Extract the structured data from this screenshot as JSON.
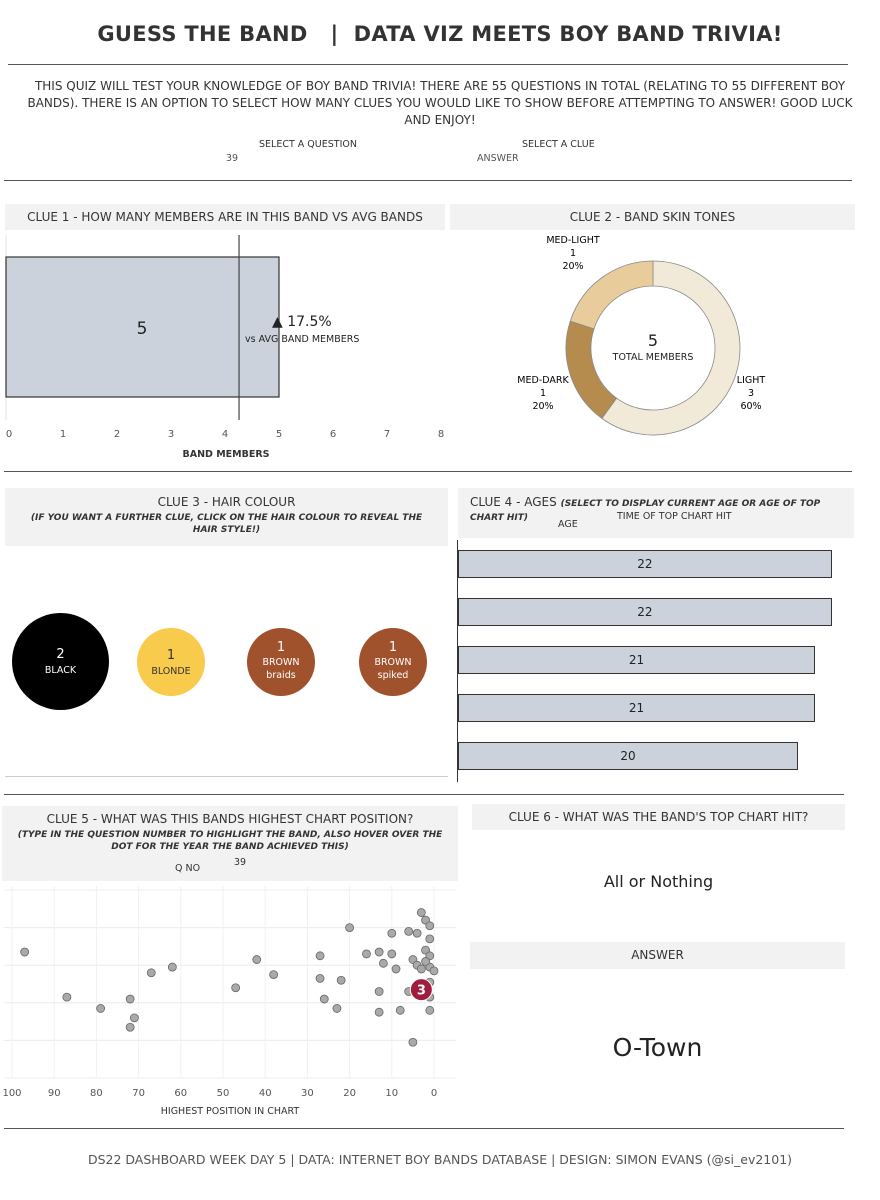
{
  "header": {
    "title": "GUESS THE BAND   |  DATA VIZ MEETS BOY BAND TRIVIA!",
    "intro": "THIS QUIZ WILL TEST YOUR KNOWLEDGE OF BOY BAND TRIVIA! THERE ARE 55 QUESTIONS IN TOTAL (RELATING TO 55 DIFFERENT BOY BANDS). THERE IS AN OPTION TO SELECT HOW MANY CLUES YOU WOULD LIKE TO SHOW BEFORE ATTEMPTING TO ANSWER! GOOD LUCK AND ENJOY!",
    "select_question_label": "SELECT A QUESTION",
    "select_question_value": "39",
    "select_clue_label": "SELECT A CLUE",
    "select_clue_value": "ANSWER"
  },
  "clue1": {
    "title": "CLUE 1 - HOW MANY MEMBERS ARE IN THIS BAND VS AVG BANDS",
    "value_label": "5",
    "delta": "▲ 17.5%",
    "delta_caption": "vs AVG BAND MEMBERS",
    "xlabel": "BAND MEMBERS"
  },
  "clue2": {
    "title": "CLUE 2 - BAND SKIN TONES",
    "center_value": "5",
    "center_label": "TOTAL MEMBERS",
    "colors": {
      "LIGHT": "#f2ead8",
      "MED-DARK": "#b58b4e",
      "MED-LIGHT": "#e8cc9c"
    },
    "labels": [
      {
        "name": "MED-LIGHT",
        "count": "1",
        "pct": "20%"
      },
      {
        "name": "MED-DARK",
        "count": "1",
        "pct": "20%"
      },
      {
        "name": "LIGHT",
        "count": "3",
        "pct": "60%"
      }
    ]
  },
  "clue3": {
    "title": "CLUE 3 - HAIR COLOUR",
    "subtitle": "(IF YOU WANT A FURTHER CLUE, CLICK ON THE HAIR COLOUR TO REVEAL THE HAIR STYLE!)",
    "colors": {
      "black": "#000000",
      "blonde": "#f9cb4c",
      "brown": "#a0522d"
    },
    "items": [
      {
        "count": "2",
        "name": "BLACK",
        "style": ""
      },
      {
        "count": "1",
        "name": "BLONDE",
        "style": ""
      },
      {
        "count": "1",
        "name": "BROWN",
        "style": "braids"
      },
      {
        "count": "1",
        "name": "BROWN",
        "style": "spiked"
      }
    ]
  },
  "clue4": {
    "title": "CLUE 4 - AGES",
    "title_note": "(SELECT TO DISPLAY CURRENT AGE OR AGE OF TOP CHART HIT)",
    "option_label": "AGE",
    "option_value": "TIME OF TOP CHART HIT",
    "ages_labels": [
      "22",
      "22",
      "21",
      "21",
      "20"
    ]
  },
  "clue5": {
    "title": "CLUE 5 - WHAT WAS THIS BANDS HIGHEST CHART POSITION?",
    "subtitle": "(TYPE IN THE QUESTION NUMBER TO HIGHLIGHT THE BAND, ALSO HOVER OVER THE DOT FOR THE YEAR THE BAND ACHIEVED THIS)",
    "qno_label": "Q NO",
    "qno_value": "39",
    "xlabel": "HIGHEST POSITION IN CHART",
    "highlight_label": "3"
  },
  "clue6": {
    "title": "CLUE 6 - WHAT WAS THE BAND'S TOP CHART HIT?",
    "hit": "All or Nothing",
    "answer_label": "ANSWER",
    "answer": "O-Town"
  },
  "footer": {
    "text": "DS22 DASHBOARD WEEK DAY 5 | DATA: INTERNET BOY BANDS DATABASE | DESIGN: SIMON EVANS (@si_ev2101)"
  },
  "chart_data": [
    {
      "type": "bar",
      "title": "CLUE 1 - HOW MANY MEMBERS ARE IN THIS BAND VS AVG BANDS",
      "categories": [
        ""
      ],
      "values": [
        5
      ],
      "reference_line": 4.26,
      "xlabel": "BAND MEMBERS",
      "xlim": [
        0,
        8
      ],
      "xticks": [
        "0",
        "1",
        "2",
        "3",
        "4",
        "5",
        "6",
        "7",
        "8"
      ]
    },
    {
      "type": "pie",
      "title": "CLUE 2 - BAND SKIN TONES",
      "labels": [
        "LIGHT",
        "MED-DARK",
        "MED-LIGHT"
      ],
      "values": [
        3,
        1,
        1
      ],
      "percent": [
        60,
        20,
        20
      ]
    },
    {
      "type": "bar",
      "title": "CLUE 4 - AGES",
      "categories": [
        "",
        "",
        "",
        "",
        ""
      ],
      "values": [
        22,
        22,
        21,
        21,
        20
      ],
      "xlim": [
        0,
        23.3
      ]
    },
    {
      "type": "scatter",
      "title": "CLUE 5 - WHAT WAS THIS BANDS HIGHEST CHART POSITION?",
      "xlabel": "HIGHEST POSITION IN CHART",
      "xlim": [
        100,
        0
      ],
      "xticks": [
        "100",
        "90",
        "80",
        "70",
        "60",
        "50",
        "40",
        "30",
        "20",
        "10",
        "0"
      ],
      "ylim": [
        0,
        5
      ],
      "highlight": {
        "x": 3,
        "y": 2.35
      },
      "points": [
        {
          "x": 97,
          "y": 3.35
        },
        {
          "x": 87,
          "y": 2.15
        },
        {
          "x": 79,
          "y": 1.85
        },
        {
          "x": 72,
          "y": 2.1
        },
        {
          "x": 71,
          "y": 1.6
        },
        {
          "x": 72,
          "y": 1.35
        },
        {
          "x": 67,
          "y": 2.8
        },
        {
          "x": 62,
          "y": 2.95
        },
        {
          "x": 47,
          "y": 2.4
        },
        {
          "x": 42,
          "y": 3.15
        },
        {
          "x": 38,
          "y": 2.75
        },
        {
          "x": 27,
          "y": 3.25
        },
        {
          "x": 27,
          "y": 2.65
        },
        {
          "x": 26,
          "y": 2.1
        },
        {
          "x": 23,
          "y": 1.85
        },
        {
          "x": 22,
          "y": 2.6
        },
        {
          "x": 20,
          "y": 4.0
        },
        {
          "x": 16,
          "y": 3.3
        },
        {
          "x": 13,
          "y": 3.35
        },
        {
          "x": 13,
          "y": 2.3
        },
        {
          "x": 13,
          "y": 1.75
        },
        {
          "x": 12,
          "y": 3.05
        },
        {
          "x": 10,
          "y": 3.3
        },
        {
          "x": 10,
          "y": 3.85
        },
        {
          "x": 9,
          "y": 2.9
        },
        {
          "x": 8,
          "y": 1.8
        },
        {
          "x": 6,
          "y": 3.9
        },
        {
          "x": 5,
          "y": 3.15
        },
        {
          "x": 4,
          "y": 3.85
        },
        {
          "x": 4,
          "y": 3.0
        },
        {
          "x": 3,
          "y": 4.4
        },
        {
          "x": 2,
          "y": 4.2
        },
        {
          "x": 2,
          "y": 3.4
        },
        {
          "x": 1,
          "y": 4.05
        },
        {
          "x": 1,
          "y": 3.7
        },
        {
          "x": 1,
          "y": 3.25
        },
        {
          "x": 1,
          "y": 2.95
        },
        {
          "x": 1,
          "y": 2.55
        },
        {
          "x": 1,
          "y": 2.15
        },
        {
          "x": 1,
          "y": 1.8
        },
        {
          "x": 3,
          "y": 2.9
        },
        {
          "x": 0,
          "y": 2.85
        },
        {
          "x": 6,
          "y": 2.3
        },
        {
          "x": 5,
          "y": 0.95
        },
        {
          "x": 2,
          "y": 3.1
        }
      ]
    }
  ]
}
